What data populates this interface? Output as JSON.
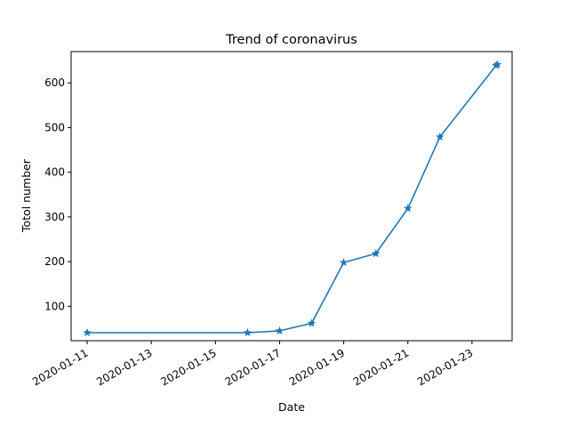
{
  "chart_data": {
    "type": "line",
    "title": "Trend of coronavirus",
    "xlabel": "Date",
    "ylabel": "Totol number",
    "x_ticks": [
      "2020-01-11",
      "2020-01-13",
      "2020-01-15",
      "2020-01-17",
      "2020-01-19",
      "2020-01-21",
      "2020-01-23"
    ],
    "y_ticks": [
      100,
      200,
      300,
      400,
      500,
      600
    ],
    "xlim": [
      "2020-01-10 12:00",
      "2020-01-24 06:00"
    ],
    "ylim": [
      23,
      670
    ],
    "grid": false,
    "marker": "star",
    "color": "#1f77b4",
    "series": [
      {
        "x": [
          "2020-01-11",
          "2020-01-16",
          "2020-01-17",
          "2020-01-18",
          "2020-01-19",
          "2020-01-20",
          "2020-01-21",
          "2020-01-22",
          "2020-01-23 18:00",
          "2020-01-23 19:00"
        ],
        "y": [
          41,
          41,
          45,
          62,
          198,
          218,
          319,
          479,
          639,
          641
        ]
      }
    ]
  }
}
